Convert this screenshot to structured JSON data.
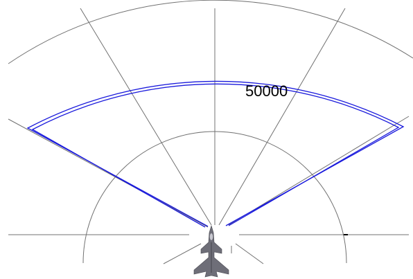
{
  "range_label": "50000",
  "colors": {
    "background": "#ffffff",
    "grid": "#707070",
    "sector": "#1a1adc",
    "aircraft": "#6e6e78"
  },
  "icons": {
    "aircraft": "fighter-jet-icon"
  }
}
